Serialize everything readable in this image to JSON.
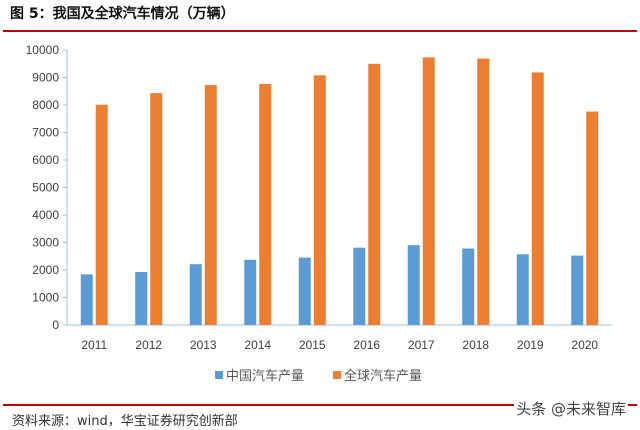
{
  "title": "图 5：我国及全球汽车情况（万辆）",
  "source": "资料来源：wind，华宝证券研究创新部",
  "watermark": "头条 @未来智库",
  "chart_data": {
    "type": "bar",
    "title": "",
    "categories": [
      "2011",
      "2012",
      "2013",
      "2014",
      "2015",
      "2016",
      "2017",
      "2018",
      "2019",
      "2020"
    ],
    "series": [
      {
        "name": "中国汽车产量",
        "color": "#5b9bd5",
        "values": [
          1842,
          1927,
          2212,
          2372,
          2450,
          2812,
          2902,
          2781,
          2572,
          2523
        ]
      },
      {
        "name": "全球汽车产量",
        "color": "#ed7d31",
        "values": [
          8010,
          8430,
          8726,
          8762,
          9078,
          9498,
          9730,
          9686,
          9185,
          7762
        ]
      }
    ],
    "ylim": [
      0,
      10000
    ],
    "yticks": [
      0,
      1000,
      2000,
      3000,
      4000,
      5000,
      6000,
      7000,
      8000,
      9000,
      10000
    ],
    "grid": false,
    "legend": "bottom"
  }
}
